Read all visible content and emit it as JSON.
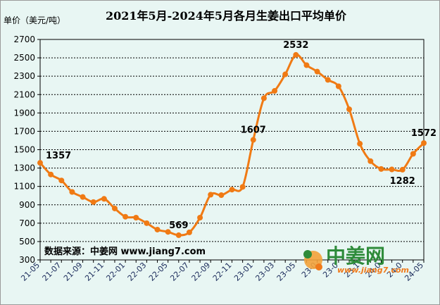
{
  "chart_data": {
    "type": "line",
    "title": "2021年5月-2024年5月各月生姜出口平均单价",
    "ylabel": "单价（美元/吨）",
    "ylim": [
      300,
      2700
    ],
    "yticks": [
      300,
      500,
      700,
      900,
      1100,
      1300,
      1500,
      1700,
      1900,
      2100,
      2300,
      2500,
      2700
    ],
    "x": [
      "21-05",
      "21-06",
      "21-07",
      "21-08",
      "21-09",
      "21-10",
      "21-11",
      "21-12",
      "22-01",
      "22-02",
      "22-03",
      "22-04",
      "22-05",
      "22-06",
      "22-07",
      "22-08",
      "22-09",
      "22-10",
      "22-11",
      "22-12",
      "23-01",
      "23-02",
      "23-03",
      "23-04",
      "23-05",
      "23-06",
      "23-07",
      "23-08",
      "23-09",
      "23-10",
      "23-11",
      "23-12",
      "24-01",
      "24-02",
      "24-03",
      "24-04",
      "24-05"
    ],
    "xtick_labels": [
      "21-05",
      "21-07",
      "21-09",
      "21-11",
      "22-01",
      "22-03",
      "22-05",
      "22-07",
      "22-09",
      "22-11",
      "23-01",
      "23-03",
      "23-05",
      "23-07",
      "23-09",
      "23-11",
      "24-01",
      "24-03",
      "24-05"
    ],
    "xtick_display": [
      "21-05",
      "21-07",
      "21-09",
      "21-11",
      "22-01",
      "22-03",
      "22-05",
      "22-07",
      "22-09",
      "22-11",
      "23-01",
      "23-03",
      "23-05",
      "23-0",
      "23-0",
      "23-1",
      "24-0",
      "24-0",
      "24-05"
    ],
    "series": [
      {
        "values": [
          1357,
          1230,
          1165,
          1040,
          985,
          930,
          965,
          860,
          770,
          760,
          700,
          630,
          605,
          569,
          600,
          760,
          1010,
          1005,
          1065,
          1095,
          1607,
          2060,
          2140,
          2320,
          2532,
          2420,
          2350,
          2260,
          2190,
          1940,
          1565,
          1375,
          1290,
          1285,
          1282,
          1455,
          1572
        ]
      }
    ],
    "data_labels": [
      {
        "index": 0,
        "text": "1357"
      },
      {
        "index": 13,
        "text": "569"
      },
      {
        "index": 20,
        "text": "1607"
      },
      {
        "index": 24,
        "text": "2532"
      },
      {
        "index": 34,
        "text": "1282"
      },
      {
        "index": 36,
        "text": "1572"
      }
    ],
    "grid": true,
    "legend": "none"
  },
  "source_text": "数据来源：中姜网 www.jiang7.com",
  "logo": {
    "cn": "中姜网",
    "url": "www.jiang7.com"
  },
  "colors": {
    "line": "#f07a14",
    "background": "#e8f6f3",
    "grid": "#000000"
  }
}
